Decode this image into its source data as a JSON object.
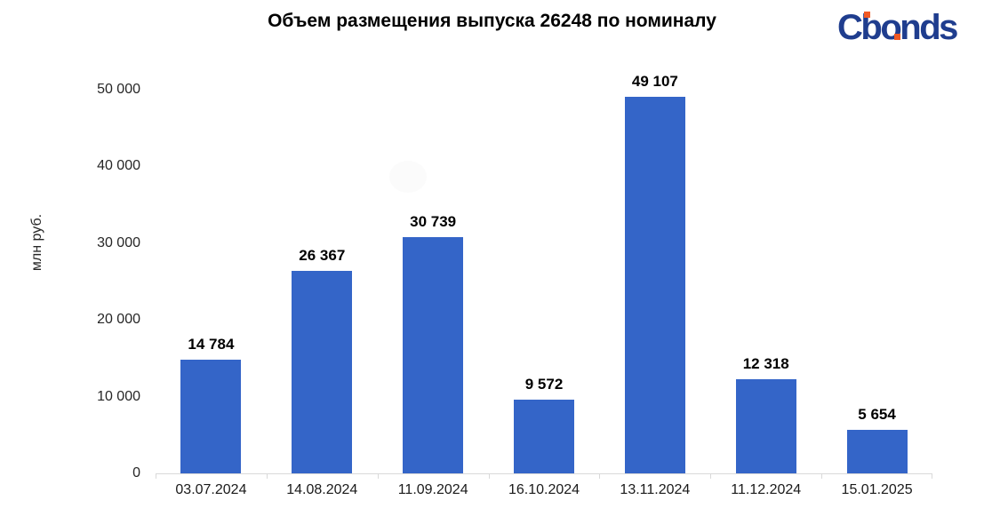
{
  "logo": {
    "text": "Cbonds",
    "color": "#1f3d8e",
    "accent": "#f15a24"
  },
  "chart_data": {
    "type": "bar",
    "title": "Объем размещения выпуска 26248 по номиналу",
    "xlabel": "",
    "ylabel": "млн руб.",
    "categories": [
      "03.07.2024",
      "14.08.2024",
      "11.09.2024",
      "16.10.2024",
      "13.11.2024",
      "11.12.2024",
      "15.01.2025"
    ],
    "values": [
      14784,
      26367,
      30739,
      9572,
      49107,
      12318,
      5654
    ],
    "value_labels": [
      "14 784",
      "26 367",
      "30 739",
      "9 572",
      "49 107",
      "12 318",
      "5 654"
    ],
    "ylim": [
      0,
      50000
    ],
    "yticks": [
      0,
      10000,
      20000,
      30000,
      40000,
      50000
    ],
    "ytick_labels": [
      "0",
      "10 000",
      "20 000",
      "30 000",
      "40 000",
      "50 000"
    ],
    "bar_color": "#3465c8",
    "axis_color": "#d9d9d9",
    "grid": false,
    "legend": "none"
  }
}
